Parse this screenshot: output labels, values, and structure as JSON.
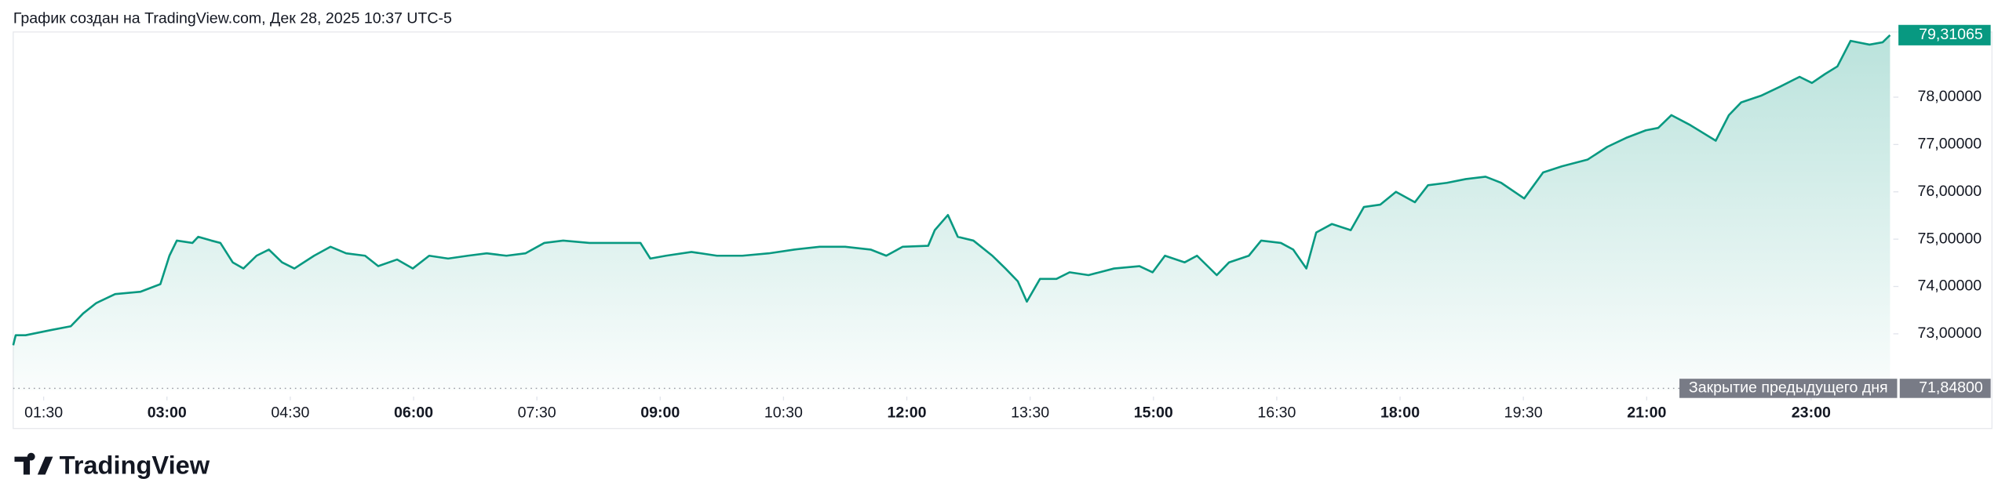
{
  "header": "График создан на TradingView.com, Дек 28, 2025 10:37 UTC-5",
  "brand": "TradingView",
  "chart_data": {
    "type": "area",
    "x": [
      1.13,
      1.16,
      1.28,
      1.59,
      1.83,
      1.98,
      2.14,
      2.37,
      2.68,
      2.92,
      3.03,
      3.12,
      3.31,
      3.38,
      3.54,
      3.65,
      3.8,
      3.93,
      4.09,
      4.24,
      4.4,
      4.55,
      4.79,
      4.99,
      5.18,
      5.41,
      5.57,
      5.8,
      5.99,
      6.19,
      6.42,
      6.66,
      6.89,
      7.13,
      7.36,
      7.59,
      7.82,
      8.14,
      8.45,
      8.76,
      8.88,
      9.07,
      9.38,
      9.69,
      10.0,
      10.32,
      10.63,
      10.94,
      11.25,
      11.56,
      11.75,
      11.95,
      12.26,
      12.34,
      12.5,
      12.62,
      12.81,
      13.04,
      13.2,
      13.35,
      13.46,
      13.62,
      13.82,
      13.98,
      14.21,
      14.52,
      14.83,
      14.99,
      15.14,
      15.38,
      15.53,
      15.77,
      15.92,
      16.16,
      16.31,
      16.55,
      16.7,
      16.86,
      16.98,
      17.17,
      17.4,
      17.56,
      17.76,
      17.95,
      18.18,
      18.34,
      18.57,
      18.8,
      19.04,
      19.23,
      19.51,
      19.74,
      19.97,
      20.28,
      20.52,
      20.75,
      20.99,
      21.14,
      21.3,
      21.53,
      21.84,
      22.0,
      22.15,
      22.39,
      22.62,
      22.86,
      23.01,
      23.17,
      23.32,
      23.48,
      23.71,
      23.87,
      23.96
    ],
    "values": [
      72.76,
      72.97,
      72.97,
      73.08,
      73.16,
      73.43,
      73.65,
      73.84,
      73.89,
      74.05,
      74.65,
      74.97,
      74.92,
      75.05,
      74.97,
      74.92,
      74.51,
      74.38,
      74.65,
      74.78,
      74.51,
      74.38,
      74.65,
      74.84,
      74.7,
      74.65,
      74.43,
      74.57,
      74.38,
      74.65,
      74.59,
      74.65,
      74.7,
      74.65,
      74.7,
      74.92,
      74.97,
      74.92,
      74.92,
      74.92,
      74.59,
      74.65,
      74.73,
      74.65,
      74.65,
      74.7,
      74.78,
      74.84,
      74.84,
      74.78,
      74.65,
      74.84,
      74.86,
      75.19,
      75.51,
      75.05,
      74.97,
      74.65,
      74.38,
      74.11,
      73.68,
      74.16,
      74.16,
      74.3,
      74.24,
      74.38,
      74.43,
      74.3,
      74.65,
      74.51,
      74.65,
      74.24,
      74.51,
      74.65,
      74.97,
      74.92,
      74.78,
      74.38,
      75.14,
      75.32,
      75.19,
      75.68,
      75.73,
      76.0,
      75.78,
      76.14,
      76.19,
      76.27,
      76.32,
      76.19,
      75.86,
      76.41,
      76.54,
      76.68,
      76.95,
      77.14,
      77.3,
      77.35,
      77.62,
      77.41,
      77.08,
      77.62,
      77.89,
      78.03,
      78.22,
      78.43,
      78.3,
      78.49,
      78.65,
      79.19,
      79.11,
      79.16,
      79.31065
    ],
    "color": "#089981",
    "xlim": [
      1.13,
      24.0
    ],
    "ylim": [
      71.81,
      79.35
    ],
    "xticks": [
      {
        "value": 1.5,
        "label": "01:30"
      },
      {
        "value": 3,
        "label": "03:00"
      },
      {
        "value": 4.5,
        "label": "04:30"
      },
      {
        "value": 6,
        "label": "06:00"
      },
      {
        "value": 7.5,
        "label": "07:30"
      },
      {
        "value": 9,
        "label": "09:00"
      },
      {
        "value": 10.5,
        "label": "10:30"
      },
      {
        "value": 12,
        "label": "12:00"
      },
      {
        "value": 13.5,
        "label": "13:30"
      },
      {
        "value": 15,
        "label": "15:00"
      },
      {
        "value": 16.5,
        "label": "16:30"
      },
      {
        "value": 18,
        "label": "18:00"
      },
      {
        "value": 19.5,
        "label": "19:30"
      },
      {
        "value": 21,
        "label": "21:00"
      },
      {
        "value": 23,
        "label": "23:00"
      }
    ],
    "yticks": [
      {
        "value": 73,
        "label": "73,00000"
      },
      {
        "value": 74,
        "label": "74,00000"
      },
      {
        "value": 75,
        "label": "75,00000"
      },
      {
        "value": 76,
        "label": "76,00000"
      },
      {
        "value": 77,
        "label": "77,00000"
      },
      {
        "value": 78,
        "label": "78,00000"
      }
    ],
    "last_price": {
      "value": 79.31065,
      "label": "79,31065"
    },
    "previous_close": {
      "value": 71.848,
      "value_label": "71,84800",
      "label": "Закрытие предыдущего дня"
    }
  }
}
